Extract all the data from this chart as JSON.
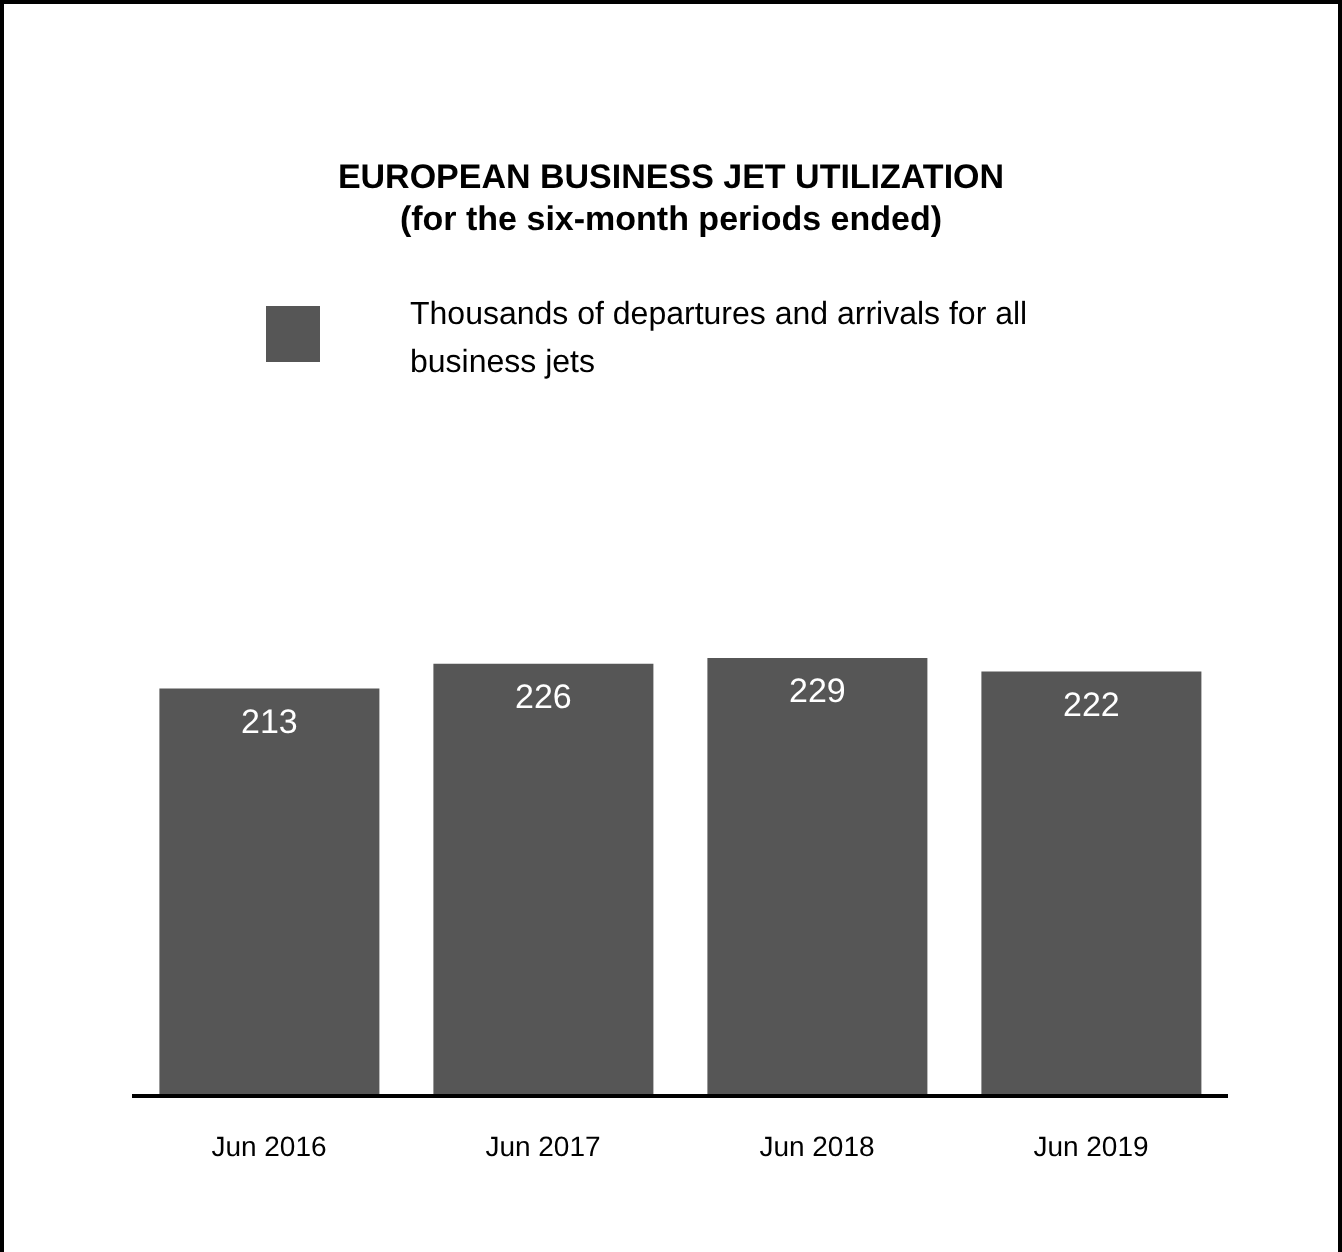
{
  "chart_data": {
    "type": "bar",
    "title": "EUROPEAN BUSINESS JET UTILIZATION",
    "subtitle": "(for the six-month periods ended)",
    "categories": [
      "Jun 2016",
      "Jun 2017",
      "Jun 2018",
      "Jun 2019"
    ],
    "series": [
      {
        "name": "Thousands of departures and arrivals for all business jets",
        "color": "#565656",
        "values": [
          213,
          226,
          229,
          222
        ]
      }
    ],
    "data_labels": true,
    "legend": "top",
    "grid": false
  }
}
